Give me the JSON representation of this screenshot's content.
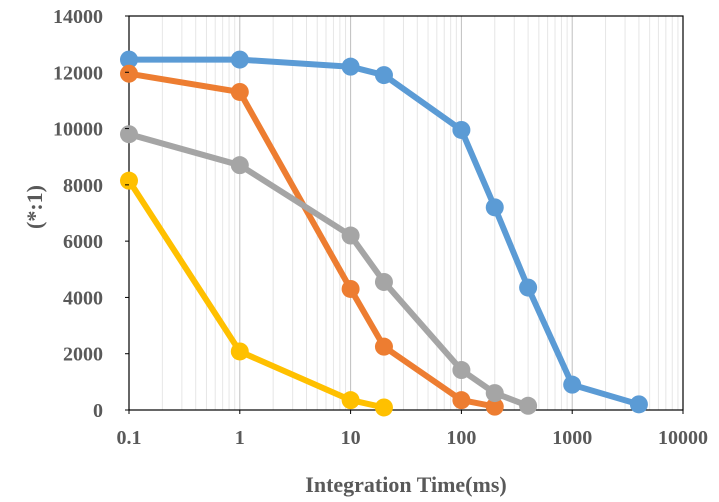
{
  "chart_data": {
    "type": "line",
    "xscale": "log",
    "xlim": [
      0.1,
      10000
    ],
    "ylim": [
      0,
      14000
    ],
    "x_ticks": [
      "0.1",
      "1",
      "10",
      "100",
      "1000",
      "10000"
    ],
    "y_ticks": [
      "0",
      "2000",
      "4000",
      "6000",
      "8000",
      "10000",
      "12000",
      "14000"
    ],
    "xlabel": "Integration Time(ms)",
    "ylabel": "(*:1)",
    "grid": true,
    "series": [
      {
        "color": "#5B9BD5",
        "x": [
          0.1,
          1,
          10,
          20,
          100,
          200,
          400,
          1000,
          4000
        ],
        "y": [
          12450,
          12450,
          12200,
          11900,
          9950,
          7200,
          4350,
          900,
          200
        ]
      },
      {
        "color": "#ED7D31",
        "x": [
          0.1,
          1,
          10,
          20,
          100,
          200
        ],
        "y": [
          11950,
          11300,
          4300,
          2250,
          350,
          120
        ]
      },
      {
        "color": "#A5A5A5",
        "x": [
          0.1,
          1,
          10,
          20,
          100,
          200,
          400
        ],
        "y": [
          9800,
          8700,
          6200,
          4550,
          1420,
          600,
          150
        ]
      },
      {
        "color": "#FFC000",
        "x": [
          0.1,
          1,
          10,
          20
        ],
        "y": [
          8150,
          2080,
          350,
          90
        ]
      }
    ]
  }
}
